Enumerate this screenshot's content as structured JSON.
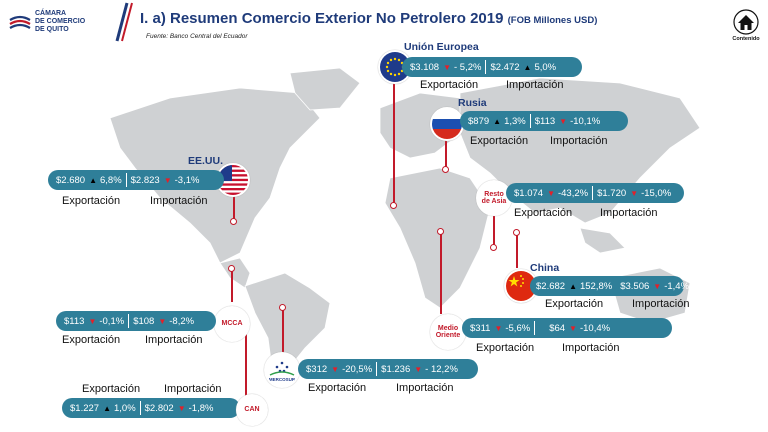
{
  "header": {
    "logo_text": [
      "CÁMARA",
      "DE COMERCIO",
      "DE QUITO"
    ],
    "title": "I. a) Resumen Comercio Exterior No Petrolero 2019",
    "title_unit": "(FOB Millones USD)",
    "source": "Fuente: Banco Central del Ecuador",
    "home_label": "Contenido"
  },
  "labels": {
    "export": "Exportación",
    "import": "Importación"
  },
  "colors": {
    "pill": "#2f7f99",
    "accent": "#c21a2a",
    "title": "#1f3b7a",
    "down": "#e3202a"
  },
  "regions": {
    "ue": {
      "name": "Unión Europea",
      "exp_value": "$3.108",
      "exp_change": "- 5,2%",
      "exp_dir": "down",
      "imp_value": "$2.472",
      "imp_change": "5,0%",
      "imp_dir": "up",
      "flag_icon": "eu-flag-icon"
    },
    "rusia": {
      "name": "Rusia",
      "exp_value": "$879",
      "exp_change": "1,3%",
      "exp_dir": "up",
      "imp_value": "$113",
      "imp_change": "-10,1%",
      "imp_dir": "down",
      "flag_icon": "russia-flag-icon"
    },
    "eeuu": {
      "name": "EE.UU.",
      "exp_value": "$2.680",
      "exp_change": "6,8%",
      "exp_dir": "up",
      "imp_value": "$2.823",
      "imp_change": "-3,1%",
      "imp_dir": "down",
      "flag_icon": "usa-flag-icon"
    },
    "asia": {
      "name_lines": [
        "Resto",
        "de Asia"
      ],
      "exp_value": "$1.074",
      "exp_change": "-43,2%",
      "exp_dir": "down",
      "imp_value": "$1.720",
      "imp_change": "-15,0%",
      "imp_dir": "down"
    },
    "china": {
      "name": "China",
      "exp_value": "$2.682",
      "exp_change": "152,8%",
      "exp_dir": "up",
      "imp_value": "$3.506",
      "imp_change": "-1,4%",
      "imp_dir": "down",
      "flag_icon": "china-flag-icon"
    },
    "mcca": {
      "name": "MCCA",
      "exp_value": "$113",
      "exp_change": "-0,1%",
      "exp_dir": "down",
      "imp_value": "$108",
      "imp_change": "-8,2%",
      "imp_dir": "down"
    },
    "medio": {
      "name_lines": [
        "Medio",
        "Oriente"
      ],
      "exp_value": "$311",
      "exp_change": "-5,6%",
      "exp_dir": "down",
      "imp_value": "$64",
      "imp_change": "-10,4%",
      "imp_dir": "down"
    },
    "mercosur": {
      "name": "MERCOSUR",
      "exp_value": "$312",
      "exp_change": "-20,5%",
      "exp_dir": "down",
      "imp_value": "$1.236",
      "imp_change": "- 12,2%",
      "imp_dir": "down"
    },
    "can": {
      "name": "CAN",
      "exp_value": "$1.227",
      "exp_change": "1,0%",
      "exp_dir": "up",
      "imp_value": "$2.802",
      "imp_change": "-1,8%",
      "imp_dir": "down"
    }
  }
}
